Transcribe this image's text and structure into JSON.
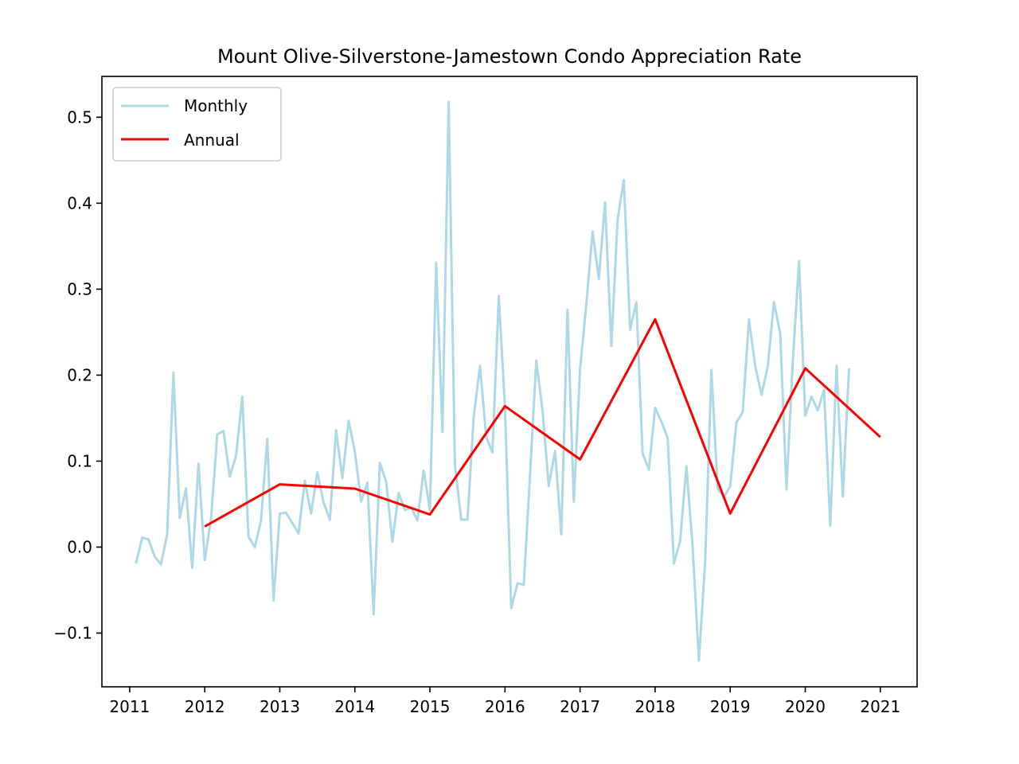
{
  "chart_data": {
    "type": "line",
    "title": "Mount Olive-Silverstone-Jamestown Condo Appreciation Rate",
    "xlabel": "",
    "ylabel": "",
    "xlim": [
      2010.63,
      2021.49
    ],
    "ylim": [
      -0.1625,
      0.5475
    ],
    "x_ticks": [
      2011,
      2012,
      2013,
      2014,
      2015,
      2016,
      2017,
      2018,
      2019,
      2020,
      2021
    ],
    "y_ticks": [
      -0.1,
      0.0,
      0.1,
      0.2,
      0.3,
      0.4,
      0.5
    ],
    "y_tick_labels": [
      "−0.1",
      "0.0",
      "0.1",
      "0.2",
      "0.3",
      "0.4",
      "0.5"
    ],
    "grid": false,
    "legend_position": "top-left",
    "series": [
      {
        "name": "Monthly",
        "color": "#add8e6",
        "x": [
          2011.083,
          2011.167,
          2011.25,
          2011.333,
          2011.417,
          2011.5,
          2011.583,
          2011.667,
          2011.75,
          2011.833,
          2011.917,
          2012.0,
          2012.083,
          2012.167,
          2012.25,
          2012.333,
          2012.417,
          2012.5,
          2012.583,
          2012.667,
          2012.75,
          2012.833,
          2012.917,
          2013.0,
          2013.083,
          2013.167,
          2013.25,
          2013.333,
          2013.417,
          2013.5,
          2013.583,
          2013.667,
          2013.75,
          2013.833,
          2013.917,
          2014.0,
          2014.083,
          2014.167,
          2014.25,
          2014.333,
          2014.417,
          2014.5,
          2014.583,
          2014.667,
          2014.75,
          2014.833,
          2014.917,
          2015.0,
          2015.083,
          2015.167,
          2015.25,
          2015.333,
          2015.417,
          2015.5,
          2015.583,
          2015.667,
          2015.75,
          2015.833,
          2015.917,
          2016.0,
          2016.083,
          2016.167,
          2016.25,
          2016.333,
          2016.417,
          2016.5,
          2016.583,
          2016.667,
          2016.75,
          2016.833,
          2016.917,
          2017.0,
          2017.083,
          2017.167,
          2017.25,
          2017.333,
          2017.417,
          2017.5,
          2017.583,
          2017.667,
          2017.75,
          2017.833,
          2017.917,
          2018.0,
          2018.083,
          2018.167,
          2018.25,
          2018.333,
          2018.417,
          2018.5,
          2018.583,
          2018.667,
          2018.75,
          2018.833,
          2018.917,
          2019.0,
          2019.083,
          2019.167,
          2019.25,
          2019.333,
          2019.417,
          2019.5,
          2019.583,
          2019.667,
          2019.75,
          2019.833,
          2019.917,
          2020.0,
          2020.083,
          2020.167,
          2020.25,
          2020.333,
          2020.417,
          2020.5,
          2020.583
        ],
        "values": [
          -0.019,
          0.011,
          0.009,
          -0.011,
          -0.02,
          0.015,
          0.203,
          0.034,
          0.068,
          -0.024,
          0.097,
          -0.015,
          0.032,
          0.131,
          0.135,
          0.082,
          0.106,
          0.175,
          0.012,
          0.0,
          0.031,
          0.126,
          -0.062,
          0.039,
          0.04,
          0.028,
          0.016,
          0.077,
          0.039,
          0.087,
          0.052,
          0.032,
          0.136,
          0.08,
          0.147,
          0.111,
          0.053,
          0.075,
          -0.078,
          0.098,
          0.076,
          0.006,
          0.063,
          0.043,
          0.046,
          0.031,
          0.089,
          0.043,
          0.331,
          0.134,
          0.518,
          0.095,
          0.032,
          0.032,
          0.151,
          0.211,
          0.128,
          0.11,
          0.292,
          0.162,
          -0.071,
          -0.042,
          -0.044,
          0.083,
          0.217,
          0.159,
          0.071,
          0.112,
          0.015,
          0.276,
          0.053,
          0.207,
          0.282,
          0.367,
          0.312,
          0.401,
          0.234,
          0.381,
          0.427,
          0.253,
          0.285,
          0.109,
          0.09,
          0.162,
          0.146,
          0.127,
          -0.019,
          0.007,
          0.094,
          0.0,
          -0.132,
          -0.016,
          0.206,
          0.068,
          0.058,
          0.071,
          0.145,
          0.157,
          0.265,
          0.211,
          0.177,
          0.21,
          0.285,
          0.248,
          0.067,
          0.214,
          0.333,
          0.153,
          0.175,
          0.159,
          0.183,
          0.025,
          0.211,
          0.059,
          0.208
        ]
      },
      {
        "name": "Annual",
        "color": "#ff0000",
        "x": [
          2012,
          2013,
          2014,
          2015,
          2016,
          2017,
          2018,
          2019,
          2020,
          2021
        ],
        "values": [
          0.024,
          0.073,
          0.068,
          0.038,
          0.164,
          0.102,
          0.265,
          0.039,
          0.208,
          0.128
        ]
      }
    ]
  }
}
